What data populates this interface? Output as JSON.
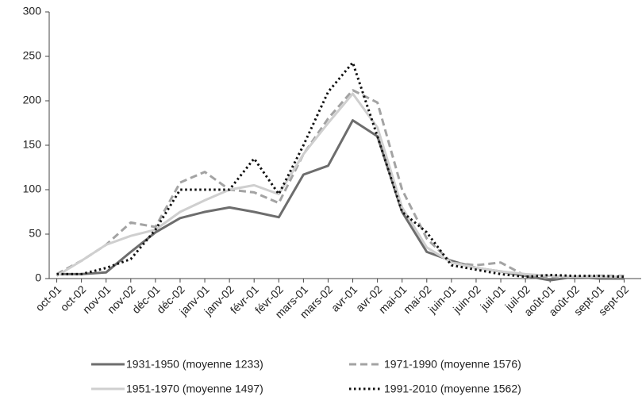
{
  "chart_data": {
    "type": "line",
    "categories": [
      "oct-01",
      "oct-02",
      "nov-01",
      "nov-02",
      "déc-01",
      "déc-02",
      "janv-01",
      "janv-02",
      "févr-01",
      "févr-02",
      "mars-01",
      "mars-02",
      "avr-01",
      "avr-02",
      "mai-01",
      "mai-02",
      "juin-01",
      "juin-02",
      "juil-01",
      "juil-02",
      "août-01",
      "août-02",
      "sept-01",
      "sept-02"
    ],
    "series": [
      {
        "name": "1931-1950 (moyenne 1233)",
        "color": "#6d6d6d",
        "dash": "solid",
        "values": [
          5,
          5,
          7,
          30,
          52,
          68,
          75,
          80,
          75,
          69,
          117,
          127,
          178,
          160,
          75,
          30,
          20,
          12,
          8,
          3,
          -2,
          2,
          0,
          0
        ]
      },
      {
        "name": "1971-1990 (moyenne 1576)",
        "color": "#a3a3a3",
        "dash": "dashed",
        "values": [
          5,
          20,
          38,
          63,
          58,
          108,
          120,
          100,
          97,
          85,
          140,
          180,
          212,
          198,
          100,
          45,
          18,
          15,
          18,
          3,
          2,
          2,
          3,
          3
        ]
      },
      {
        "name": "1951-1970 (moyenne 1497)",
        "color": "#cfcfcf",
        "dash": "solid",
        "values": [
          3,
          20,
          38,
          48,
          55,
          75,
          88,
          100,
          105,
          95,
          140,
          175,
          208,
          170,
          80,
          35,
          18,
          12,
          8,
          5,
          3,
          2,
          2,
          2
        ]
      },
      {
        "name": "1991-2010 (moyenne 1562)",
        "color": "#111111",
        "dash": "dotted",
        "values": [
          5,
          5,
          12,
          22,
          55,
          100,
          100,
          100,
          135,
          95,
          150,
          210,
          243,
          160,
          75,
          52,
          15,
          10,
          5,
          2,
          4,
          3,
          3,
          2
        ]
      }
    ],
    "ylim": [
      0,
      300
    ],
    "yticks": [
      0,
      50,
      100,
      150,
      200,
      250,
      300
    ],
    "grid": false,
    "legend": "bottom"
  }
}
